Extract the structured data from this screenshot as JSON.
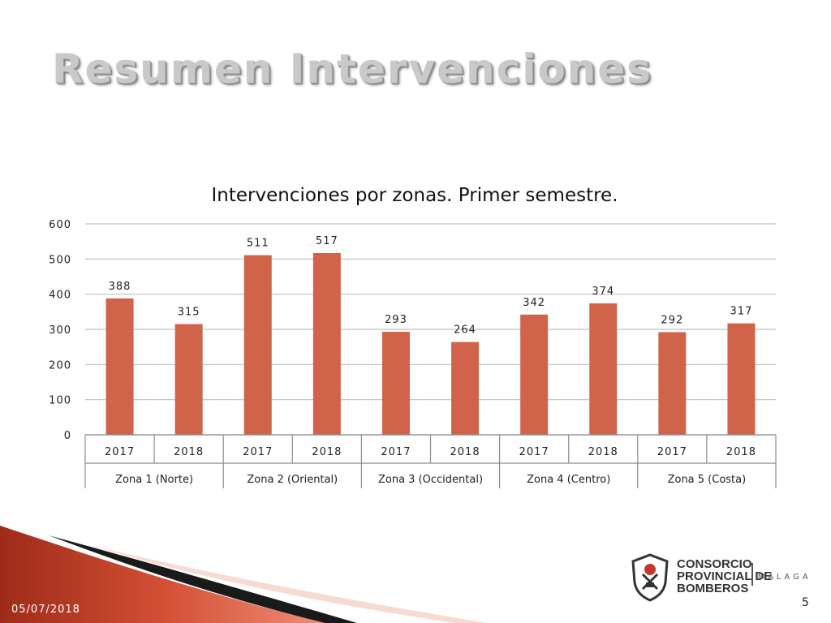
{
  "slide": {
    "title": "Resumen Intervenciones",
    "date": "05/07/2018",
    "page_number": "5"
  },
  "logo": {
    "org_name": "CONSORCIO\nPROVINCIAL DE\nBOMBEROS",
    "city": "MÁLAGA"
  },
  "colors": {
    "bar": "#d0634a",
    "grid": "#bfbfbf",
    "swoosh_red": "#c23a24",
    "swoosh_dark": "#1a1a1a"
  },
  "chart_data": {
    "type": "bar",
    "title": "Intervenciones por zonas. Primer semestre.",
    "xlabel": "",
    "ylabel": "",
    "ylim": [
      0,
      600
    ],
    "yticks": [
      0,
      100,
      200,
      300,
      400,
      500,
      600
    ],
    "grid": true,
    "legend": "none",
    "groups": [
      "Zona 1 (Norte)",
      "Zona 2 (Oriental)",
      "Zona 3 (Occidental)",
      "Zona 4 (Centro)",
      "Zona 5 (Costa)"
    ],
    "categories": [
      "2017",
      "2018",
      "2017",
      "2018",
      "2017",
      "2018",
      "2017",
      "2018",
      "2017",
      "2018"
    ],
    "values": [
      388,
      315,
      511,
      517,
      293,
      264,
      342,
      374,
      292,
      317
    ]
  }
}
